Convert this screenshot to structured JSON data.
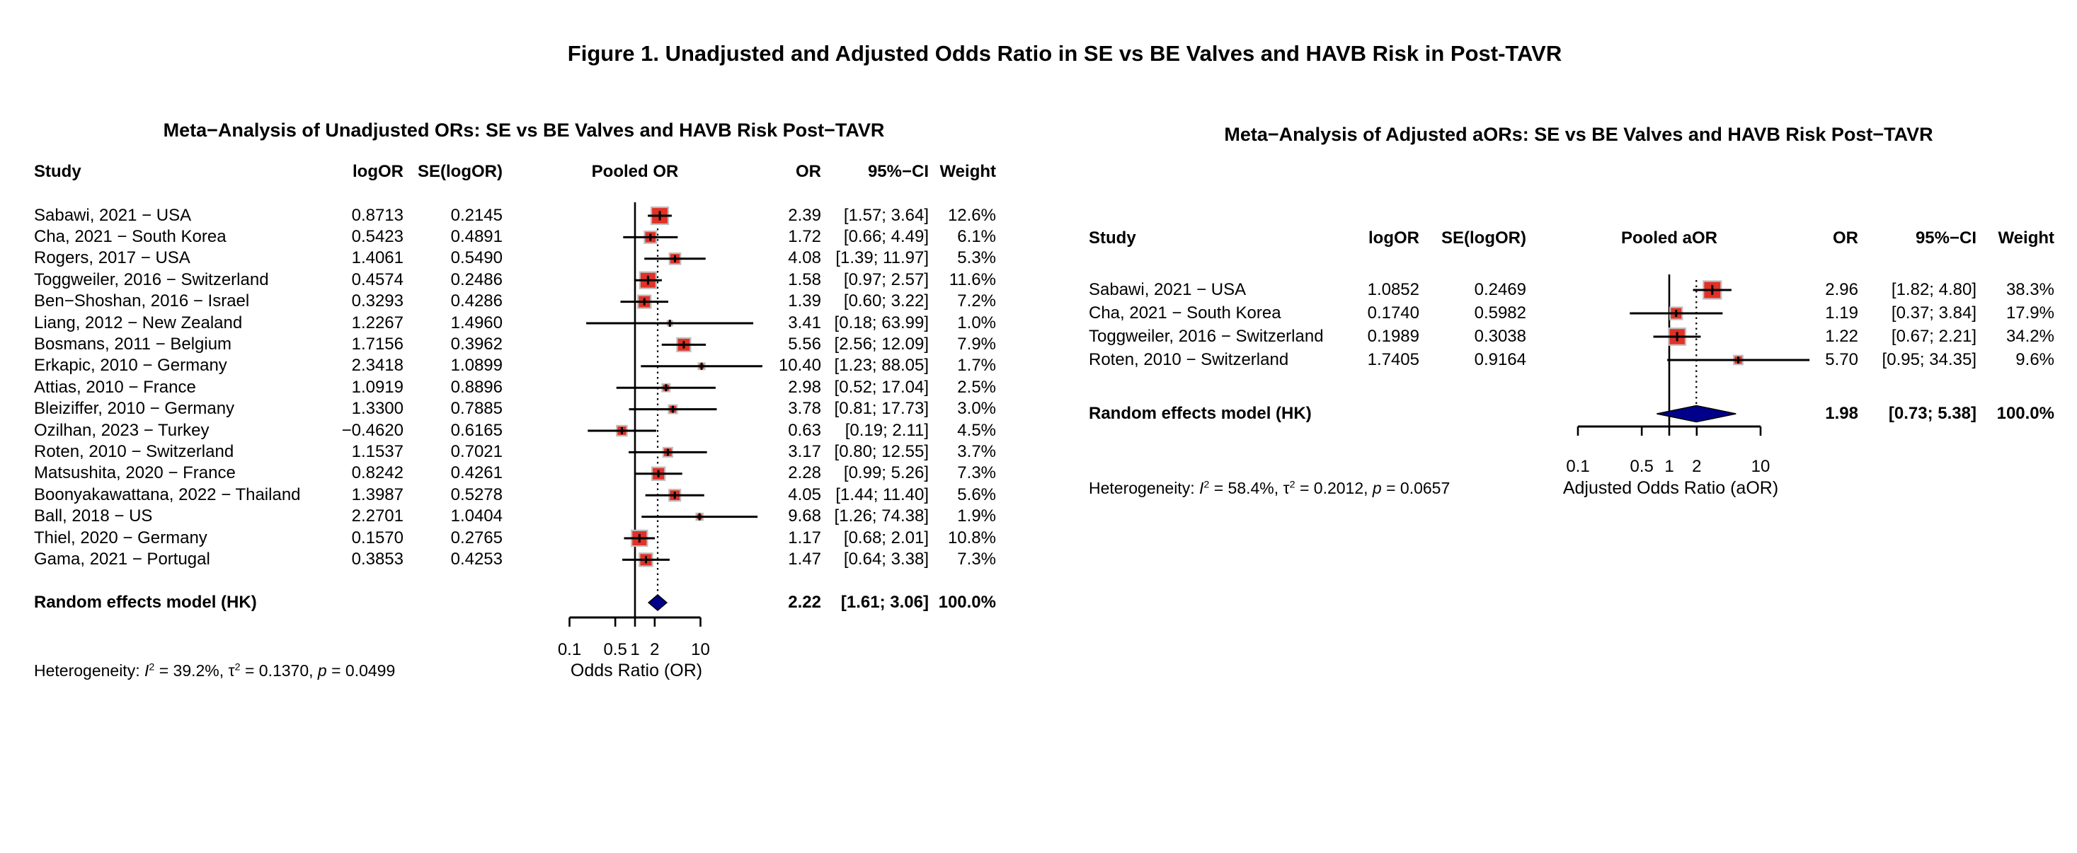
{
  "figure_title": "Figure 1. Unadjusted and Adjusted Odds Ratio in SE vs BE Valves and HAVB Risk in Post-TAVR",
  "colors": {
    "square_fill": "#E23127",
    "square_border": "#BEBEBE",
    "diamond_fill": "#00008B",
    "line": "#000000"
  },
  "chart_data": [
    {
      "type": "forest",
      "title": "Meta−Analysis of Unadjusted ORs: SE vs BE Valves and HAVB Risk Post−TAVR",
      "columns": {
        "study": "Study",
        "logor": "logOR",
        "se": "SE(logOR)",
        "plot": "Pooled OR",
        "or": "OR",
        "ci": "95%−CI",
        "weight": "Weight"
      },
      "x_axis": {
        "label": "Odds Ratio (OR)",
        "scale": "log",
        "ticks": [
          0.1,
          0.5,
          1,
          2,
          10
        ],
        "tick_labels": [
          "0.1",
          "0.5",
          "1",
          "2",
          "10"
        ],
        "ref_line": 1
      },
      "studies": [
        {
          "study": "Sabawi, 2021 − USA",
          "logor": "0.8713",
          "se": "0.2145",
          "or": 2.39,
          "ci_low": 1.57,
          "ci_high": 3.64,
          "weight": 12.6,
          "or_label": "2.39",
          "ci_label": "[1.57;  3.64]",
          "weight_label": "12.6%"
        },
        {
          "study": "Cha, 2021 − South Korea",
          "logor": "0.5423",
          "se": "0.4891",
          "or": 1.72,
          "ci_low": 0.66,
          "ci_high": 4.49,
          "weight": 6.1,
          "or_label": "1.72",
          "ci_label": "[0.66;  4.49]",
          "weight_label": "6.1%"
        },
        {
          "study": "Rogers, 2017 − USA",
          "logor": "1.4061",
          "se": "0.5490",
          "or": 4.08,
          "ci_low": 1.39,
          "ci_high": 11.97,
          "weight": 5.3,
          "or_label": "4.08",
          "ci_label": "[1.39; 11.97]",
          "weight_label": "5.3%"
        },
        {
          "study": "Toggweiler, 2016 − Switzerland",
          "logor": "0.4574",
          "se": "0.2486",
          "or": 1.58,
          "ci_low": 0.97,
          "ci_high": 2.57,
          "weight": 11.6,
          "or_label": "1.58",
          "ci_label": "[0.97;  2.57]",
          "weight_label": "11.6%"
        },
        {
          "study": "Ben−Shoshan, 2016 − Israel",
          "logor": "0.3293",
          "se": "0.4286",
          "or": 1.39,
          "ci_low": 0.6,
          "ci_high": 3.22,
          "weight": 7.2,
          "or_label": "1.39",
          "ci_label": "[0.60;  3.22]",
          "weight_label": "7.2%"
        },
        {
          "study": "Liang, 2012 − New Zealand",
          "logor": "1.2267",
          "se": "1.4960",
          "or": 3.41,
          "ci_low": 0.18,
          "ci_high": 63.99,
          "weight": 1.0,
          "or_label": "3.41",
          "ci_label": "[0.18; 63.99]",
          "weight_label": "1.0%"
        },
        {
          "study": "Bosmans, 2011 − Belgium",
          "logor": "1.7156",
          "se": "0.3962",
          "or": 5.56,
          "ci_low": 2.56,
          "ci_high": 12.09,
          "weight": 7.9,
          "or_label": "5.56",
          "ci_label": "[2.56; 12.09]",
          "weight_label": "7.9%"
        },
        {
          "study": "Erkapic, 2010 − Germany",
          "logor": "2.3418",
          "se": "1.0899",
          "or": 10.4,
          "ci_low": 1.23,
          "ci_high": 88.05,
          "weight": 1.7,
          "or_label": "10.40",
          "ci_label": "[1.23; 88.05]",
          "weight_label": "1.7%"
        },
        {
          "study": "Attias, 2010 − France",
          "logor": "1.0919",
          "se": "0.8896",
          "or": 2.98,
          "ci_low": 0.52,
          "ci_high": 17.04,
          "weight": 2.5,
          "or_label": "2.98",
          "ci_label": "[0.52; 17.04]",
          "weight_label": "2.5%"
        },
        {
          "study": "Bleiziffer, 2010 − Germany",
          "logor": "1.3300",
          "se": "0.7885",
          "or": 3.78,
          "ci_low": 0.81,
          "ci_high": 17.73,
          "weight": 3.0,
          "or_label": "3.78",
          "ci_label": "[0.81; 17.73]",
          "weight_label": "3.0%"
        },
        {
          "study": "Ozilhan, 2023 − Turkey",
          "logor": "−0.4620",
          "se": "0.6165",
          "or": 0.63,
          "ci_low": 0.19,
          "ci_high": 2.11,
          "weight": 4.5,
          "or_label": "0.63",
          "ci_label": "[0.19;  2.11]",
          "weight_label": "4.5%"
        },
        {
          "study": "Roten, 2010 − Switzerland",
          "logor": "1.1537",
          "se": "0.7021",
          "or": 3.17,
          "ci_low": 0.8,
          "ci_high": 12.55,
          "weight": 3.7,
          "or_label": "3.17",
          "ci_label": "[0.80; 12.55]",
          "weight_label": "3.7%"
        },
        {
          "study": "Matsushita, 2020 − France",
          "logor": "0.8242",
          "se": "0.4261",
          "or": 2.28,
          "ci_low": 0.99,
          "ci_high": 5.26,
          "weight": 7.3,
          "or_label": "2.28",
          "ci_label": "[0.99;  5.26]",
          "weight_label": "7.3%"
        },
        {
          "study": "Boonyakawattana, 2022 − Thailand",
          "logor": "1.3987",
          "se": "0.5278",
          "or": 4.05,
          "ci_low": 1.44,
          "ci_high": 11.4,
          "weight": 5.6,
          "or_label": "4.05",
          "ci_label": "[1.44; 11.40]",
          "weight_label": "5.6%"
        },
        {
          "study": "Ball, 2018 − US",
          "logor": "2.2701",
          "se": "1.0404",
          "or": 9.68,
          "ci_low": 1.26,
          "ci_high": 74.38,
          "weight": 1.9,
          "or_label": "9.68",
          "ci_label": "[1.26; 74.38]",
          "weight_label": "1.9%"
        },
        {
          "study": "Thiel, 2020 − Germany",
          "logor": "0.1570",
          "se": "0.2765",
          "or": 1.17,
          "ci_low": 0.68,
          "ci_high": 2.01,
          "weight": 10.8,
          "or_label": "1.17",
          "ci_label": "[0.68;  2.01]",
          "weight_label": "10.8%"
        },
        {
          "study": "Gama, 2021 − Portugal",
          "logor": "0.3853",
          "se": "0.4253",
          "or": 1.47,
          "ci_low": 0.64,
          "ci_high": 3.38,
          "weight": 7.3,
          "or_label": "1.47",
          "ci_label": "[0.64;  3.38]",
          "weight_label": "7.3%"
        }
      ],
      "pooled": {
        "label": "Random effects model (HK)",
        "or": 2.22,
        "ci_low": 1.61,
        "ci_high": 3.06,
        "or_label": "2.22",
        "ci_label": "[1.61;  3.06]",
        "weight_label": "100.0%"
      },
      "heterogeneity": [
        {
          "t": "Heterogeneity: "
        },
        {
          "t": "I",
          "i": 1
        },
        {
          "t": "2",
          "s": 1
        },
        {
          "t": " = 39.2%, "
        },
        {
          "t": "τ"
        },
        {
          "t": "2",
          "s": 1
        },
        {
          "t": " = 0.1370, "
        },
        {
          "t": "p",
          "i": 1
        },
        {
          "t": " = 0.0499"
        }
      ]
    },
    {
      "type": "forest",
      "title": "Meta−Analysis of Adjusted aORs: SE vs BE Valves and HAVB Risk Post−TAVR",
      "columns": {
        "study": "Study",
        "logor": "logOR",
        "se": "SE(logOR)",
        "plot": "Pooled aOR",
        "or": "OR",
        "ci": "95%−CI",
        "weight": "Weight"
      },
      "x_axis": {
        "label": "Adjusted Odds Ratio (aOR)",
        "scale": "log",
        "ticks": [
          0.1,
          0.5,
          1,
          2,
          10
        ],
        "tick_labels": [
          "0.1",
          "0.5",
          "1",
          "2",
          "10"
        ],
        "ref_line": 1
      },
      "studies": [
        {
          "study": "Sabawi, 2021 − USA",
          "logor": "1.0852",
          "se": "0.2469",
          "or": 2.96,
          "ci_low": 1.82,
          "ci_high": 4.8,
          "weight": 38.3,
          "or_label": "2.96",
          "ci_label": "[1.82;  4.80]",
          "weight_label": "38.3%"
        },
        {
          "study": "Cha, 2021 − South Korea",
          "logor": "0.1740",
          "se": "0.5982",
          "or": 1.19,
          "ci_low": 0.37,
          "ci_high": 3.84,
          "weight": 17.9,
          "or_label": "1.19",
          "ci_label": "[0.37;  3.84]",
          "weight_label": "17.9%"
        },
        {
          "study": "Toggweiler, 2016 − Switzerland",
          "logor": "0.1989",
          "se": "0.3038",
          "or": 1.22,
          "ci_low": 0.67,
          "ci_high": 2.21,
          "weight": 34.2,
          "or_label": "1.22",
          "ci_label": "[0.67;  2.21]",
          "weight_label": "34.2%"
        },
        {
          "study": "Roten, 2010 − Switzerland",
          "logor": "1.7405",
          "se": "0.9164",
          "or": 5.7,
          "ci_low": 0.95,
          "ci_high": 34.35,
          "weight": 9.6,
          "or_label": "5.70",
          "ci_label": "[0.95; 34.35]",
          "weight_label": "9.6%"
        }
      ],
      "pooled": {
        "label": "Random effects model (HK)",
        "or": 1.98,
        "ci_low": 0.73,
        "ci_high": 5.38,
        "or_label": "1.98",
        "ci_label": "[0.73;  5.38]",
        "weight_label": "100.0%"
      },
      "heterogeneity": [
        {
          "t": "Heterogeneity: "
        },
        {
          "t": "I",
          "i": 1
        },
        {
          "t": "2",
          "s": 1
        },
        {
          "t": " = 58.4%, "
        },
        {
          "t": "τ"
        },
        {
          "t": "2",
          "s": 1
        },
        {
          "t": " = 0.2012, "
        },
        {
          "t": "p",
          "i": 1
        },
        {
          "t": " = 0.0657"
        }
      ]
    }
  ]
}
